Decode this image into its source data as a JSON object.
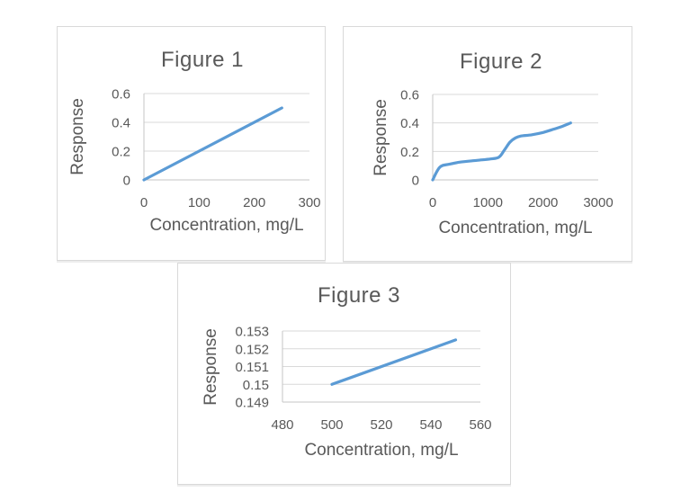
{
  "page": {
    "background": "#ffffff"
  },
  "chart_data": [
    {
      "id": "figure-1",
      "type": "line",
      "title": "Figure 1",
      "xlabel": "Concentration, mg/L",
      "ylabel": "Response",
      "xlim": [
        0,
        300
      ],
      "ylim": [
        0,
        0.6
      ],
      "xticks": [
        0,
        100,
        200,
        300
      ],
      "xtick_labels": [
        "0",
        "100",
        "200",
        "300"
      ],
      "yticks": [
        0,
        0.2,
        0.4,
        0.6
      ],
      "ytick_labels": [
        "0",
        "0.2",
        "0.4",
        "0.6"
      ],
      "grid": true,
      "legend": false,
      "line_color": "#5B9BD5",
      "gridline_color": "#D9D9D9",
      "axis_color": "#C6C6C6",
      "text_color": "#595959",
      "series": [
        {
          "smooth": false,
          "points": [
            [
              0,
              0
            ],
            [
              250,
              0.5
            ]
          ]
        }
      ]
    },
    {
      "id": "figure-2",
      "type": "line",
      "title": "Figure 2",
      "xlabel": "Concentration, mg/L",
      "ylabel": "Response",
      "xlim": [
        0,
        3000
      ],
      "ylim": [
        0,
        0.6
      ],
      "xticks": [
        0,
        1000,
        2000,
        3000
      ],
      "xtick_labels": [
        "0",
        "1000",
        "2000",
        "3000"
      ],
      "yticks": [
        0,
        0.2,
        0.4,
        0.6
      ],
      "ytick_labels": [
        "0",
        "0.2",
        "0.4",
        "0.6"
      ],
      "grid": true,
      "legend": false,
      "line_color": "#5B9BD5",
      "gridline_color": "#D9D9D9",
      "axis_color": "#C6C6C6",
      "text_color": "#595959",
      "series": [
        {
          "smooth": true,
          "points": [
            [
              0,
              0
            ],
            [
              130,
              0.09
            ],
            [
              300,
              0.11
            ],
            [
              500,
              0.125
            ],
            [
              800,
              0.137
            ],
            [
              1050,
              0.147
            ],
            [
              1200,
              0.16
            ],
            [
              1300,
              0.21
            ],
            [
              1400,
              0.265
            ],
            [
              1500,
              0.295
            ],
            [
              1600,
              0.308
            ],
            [
              1800,
              0.317
            ],
            [
              2000,
              0.333
            ],
            [
              2200,
              0.357
            ],
            [
              2350,
              0.376
            ],
            [
              2500,
              0.4
            ]
          ]
        }
      ]
    },
    {
      "id": "figure-3",
      "type": "line",
      "title": "Figure 3",
      "xlabel": "Concentration, mg/L",
      "ylabel": "Response",
      "xlim": [
        480,
        560
      ],
      "ylim": [
        0.149,
        0.153
      ],
      "xticks": [
        480,
        500,
        520,
        540,
        560
      ],
      "xtick_labels": [
        "480",
        "500",
        "520",
        "540",
        "560"
      ],
      "yticks": [
        0.149,
        0.15,
        0.151,
        0.152,
        0.153
      ],
      "ytick_labels": [
        "0.149",
        "0.15",
        "0.151",
        "0.152",
        "0.153"
      ],
      "grid": true,
      "legend": false,
      "line_color": "#5B9BD5",
      "gridline_color": "#D9D9D9",
      "axis_color": "#C6C6C6",
      "text_color": "#595959",
      "series": [
        {
          "smooth": false,
          "points": [
            [
              500,
              0.15
            ],
            [
              550,
              0.1525
            ]
          ]
        }
      ]
    }
  ]
}
